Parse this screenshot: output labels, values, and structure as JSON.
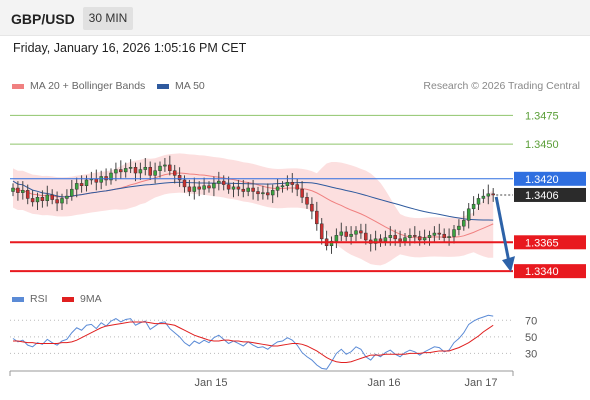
{
  "header": {
    "symbol": "GBP/USD",
    "timeframe": "30 MIN"
  },
  "datetime": "Friday, January 16, 2026 1:05:16 PM CET",
  "legend": {
    "ma20": {
      "label": "MA 20 + Bollinger Bands",
      "color": "#f08080"
    },
    "ma50": {
      "label": "MA 50",
      "color": "#2f5a9e"
    },
    "credit": "Research © 2026 Trading Central"
  },
  "rsi_legend": {
    "rsi": {
      "label": "RSI",
      "color": "#5b8bd6"
    },
    "ma9": {
      "label": "9MA",
      "color": "#e02020"
    }
  },
  "chart_data": [
    {
      "type": "candlestick",
      "ylim": [
        1.3328,
        1.349
      ],
      "levels": [
        {
          "value": 1.3475,
          "label": "1.3475",
          "kind": "target"
        },
        {
          "value": 1.345,
          "label": "1.3450",
          "kind": "target"
        },
        {
          "value": 1.342,
          "label": "1.3420",
          "kind": "pivot"
        },
        {
          "value": 1.3406,
          "label": "1.3406",
          "kind": "last"
        },
        {
          "value": 1.3365,
          "label": "1.3365",
          "kind": "support"
        },
        {
          "value": 1.334,
          "label": "1.3340",
          "kind": "support"
        }
      ],
      "x_ticks": [
        "Jan 15",
        "Jan 16",
        "Jan 17"
      ],
      "forecast_arrow": {
        "from": 1.3406,
        "to": 1.334,
        "direction": "down"
      },
      "closes": [
        1.3412,
        1.3408,
        1.341,
        1.3403,
        1.34,
        1.3404,
        1.3401,
        1.3406,
        1.3402,
        1.3399,
        1.3403,
        1.3405,
        1.3411,
        1.3416,
        1.3414,
        1.3419,
        1.342,
        1.3417,
        1.3422,
        1.3419,
        1.3425,
        1.3428,
        1.3426,
        1.3429,
        1.343,
        1.3425,
        1.3428,
        1.343,
        1.3423,
        1.3427,
        1.3431,
        1.3432,
        1.3427,
        1.3423,
        1.3419,
        1.3413,
        1.3409,
        1.3413,
        1.3411,
        1.3414,
        1.3412,
        1.3416,
        1.3418,
        1.3415,
        1.3411,
        1.3413,
        1.3411,
        1.3409,
        1.3412,
        1.3409,
        1.3407,
        1.3408,
        1.3406,
        1.341,
        1.3413,
        1.3414,
        1.3417,
        1.3415,
        1.3411,
        1.3404,
        1.3398,
        1.3392,
        1.3381,
        1.3368,
        1.3362,
        1.3366,
        1.3371,
        1.3374,
        1.337,
        1.3372,
        1.3375,
        1.3373,
        1.3367,
        1.3364,
        1.3368,
        1.3366,
        1.3369,
        1.3371,
        1.3368,
        1.3366,
        1.3369,
        1.3371,
        1.337,
        1.3367,
        1.3369,
        1.3371,
        1.3373,
        1.3372,
        1.3369,
        1.337,
        1.3376,
        1.3379,
        1.3384,
        1.3394,
        1.3398,
        1.3403,
        1.3405,
        1.3407,
        1.3406
      ]
    },
    {
      "type": "line",
      "title": "RSI",
      "y_ticks": [
        70,
        50,
        30
      ],
      "ylim": [
        10,
        80
      ],
      "rsi": [
        48,
        44,
        46,
        40,
        38,
        43,
        41,
        47,
        43,
        40,
        45,
        47,
        55,
        61,
        58,
        64,
        65,
        60,
        67,
        63,
        69,
        72,
        68,
        71,
        72,
        64,
        67,
        69,
        59,
        63,
        67,
        68,
        60,
        55,
        50,
        43,
        39,
        45,
        42,
        46,
        43,
        49,
        52,
        47,
        42,
        45,
        42,
        39,
        44,
        40,
        37,
        38,
        35,
        40,
        44,
        45,
        49,
        46,
        40,
        31,
        26,
        22,
        16,
        12,
        11,
        20,
        30,
        35,
        29,
        32,
        38,
        35,
        26,
        22,
        29,
        26,
        31,
        34,
        29,
        26,
        31,
        34,
        32,
        28,
        32,
        35,
        38,
        37,
        32,
        34,
        43,
        48,
        55,
        65,
        69,
        72,
        74,
        76,
        75
      ],
      "ma9": [
        45,
        45,
        44,
        43,
        43,
        42,
        42,
        42,
        42,
        42,
        43,
        43,
        44,
        46,
        49,
        52,
        55,
        58,
        61,
        63,
        64,
        65,
        66,
        67,
        68,
        68,
        68,
        68,
        67,
        66,
        66,
        66,
        65,
        64,
        61,
        58,
        55,
        52,
        50,
        48,
        46,
        45,
        45,
        46,
        46,
        45,
        45,
        44,
        44,
        43,
        42,
        41,
        40,
        39,
        39,
        40,
        41,
        42,
        42,
        41,
        39,
        36,
        33,
        29,
        25,
        22,
        20,
        19,
        19,
        20,
        22,
        24,
        26,
        28,
        28,
        28,
        29,
        29,
        29,
        29,
        29,
        30,
        30,
        30,
        31,
        31,
        32,
        33,
        33,
        33,
        35,
        37,
        40,
        43,
        47,
        51,
        56,
        60,
        64
      ]
    }
  ]
}
